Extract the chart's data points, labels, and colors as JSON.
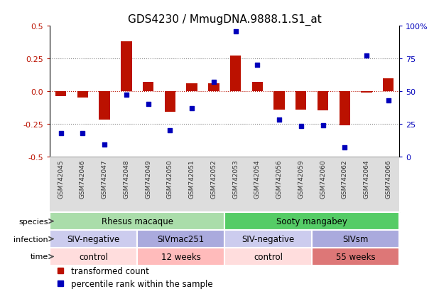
{
  "title": "GDS4230 / MmugDNA.9888.1.S1_at",
  "samples": [
    "GSM742045",
    "GSM742046",
    "GSM742047",
    "GSM742048",
    "GSM742049",
    "GSM742050",
    "GSM742051",
    "GSM742052",
    "GSM742053",
    "GSM742054",
    "GSM742056",
    "GSM742059",
    "GSM742060",
    "GSM742062",
    "GSM742064",
    "GSM742066"
  ],
  "bar_values": [
    -0.04,
    -0.05,
    -0.22,
    0.38,
    0.07,
    -0.16,
    0.06,
    0.06,
    0.27,
    0.07,
    -0.14,
    -0.14,
    -0.15,
    -0.26,
    -0.01,
    0.1
  ],
  "dot_values": [
    18,
    18,
    9,
    47,
    40,
    20,
    37,
    57,
    96,
    70,
    28,
    23,
    24,
    7,
    77,
    43
  ],
  "bar_color": "#bb1100",
  "dot_color": "#0000bb",
  "ylim_left": [
    -0.5,
    0.5
  ],
  "ylim_right": [
    0,
    100
  ],
  "yticks_left": [
    -0.5,
    -0.25,
    0.0,
    0.25,
    0.5
  ],
  "yticks_right": [
    0,
    25,
    50,
    75,
    100
  ],
  "ytick_labels_right": [
    "0",
    "25",
    "50",
    "75",
    "100%"
  ],
  "hlines": [
    -0.25,
    0.0,
    0.25
  ],
  "species_groups": [
    {
      "label": "Rhesus macaque",
      "start": 0,
      "end": 8,
      "color": "#aaddaa"
    },
    {
      "label": "Sooty mangabey",
      "start": 8,
      "end": 16,
      "color": "#55cc66"
    }
  ],
  "infection_groups": [
    {
      "label": "SIV-negative",
      "start": 0,
      "end": 4,
      "color": "#ccccee"
    },
    {
      "label": "SIVmac251",
      "start": 4,
      "end": 8,
      "color": "#aaaadd"
    },
    {
      "label": "SIV-negative",
      "start": 8,
      "end": 12,
      "color": "#ccccee"
    },
    {
      "label": "SIVsm",
      "start": 12,
      "end": 16,
      "color": "#aaaadd"
    }
  ],
  "time_groups": [
    {
      "label": "control",
      "start": 0,
      "end": 4,
      "color": "#ffdddd"
    },
    {
      "label": "12 weeks",
      "start": 4,
      "end": 8,
      "color": "#ffbbbb"
    },
    {
      "label": "control",
      "start": 8,
      "end": 12,
      "color": "#ffdddd"
    },
    {
      "label": "55 weeks",
      "start": 12,
      "end": 16,
      "color": "#dd7777"
    }
  ],
  "row_labels": [
    "species",
    "infection",
    "time"
  ],
  "legend_items": [
    {
      "label": "transformed count",
      "color": "#bb1100",
      "marker": "s"
    },
    {
      "label": "percentile rank within the sample",
      "color": "#0000bb",
      "marker": "s"
    }
  ],
  "bg_color": "#ffffff",
  "plot_bg": "#ffffff",
  "spine_color": "#000000",
  "tick_gray_bg": "#dddddd"
}
